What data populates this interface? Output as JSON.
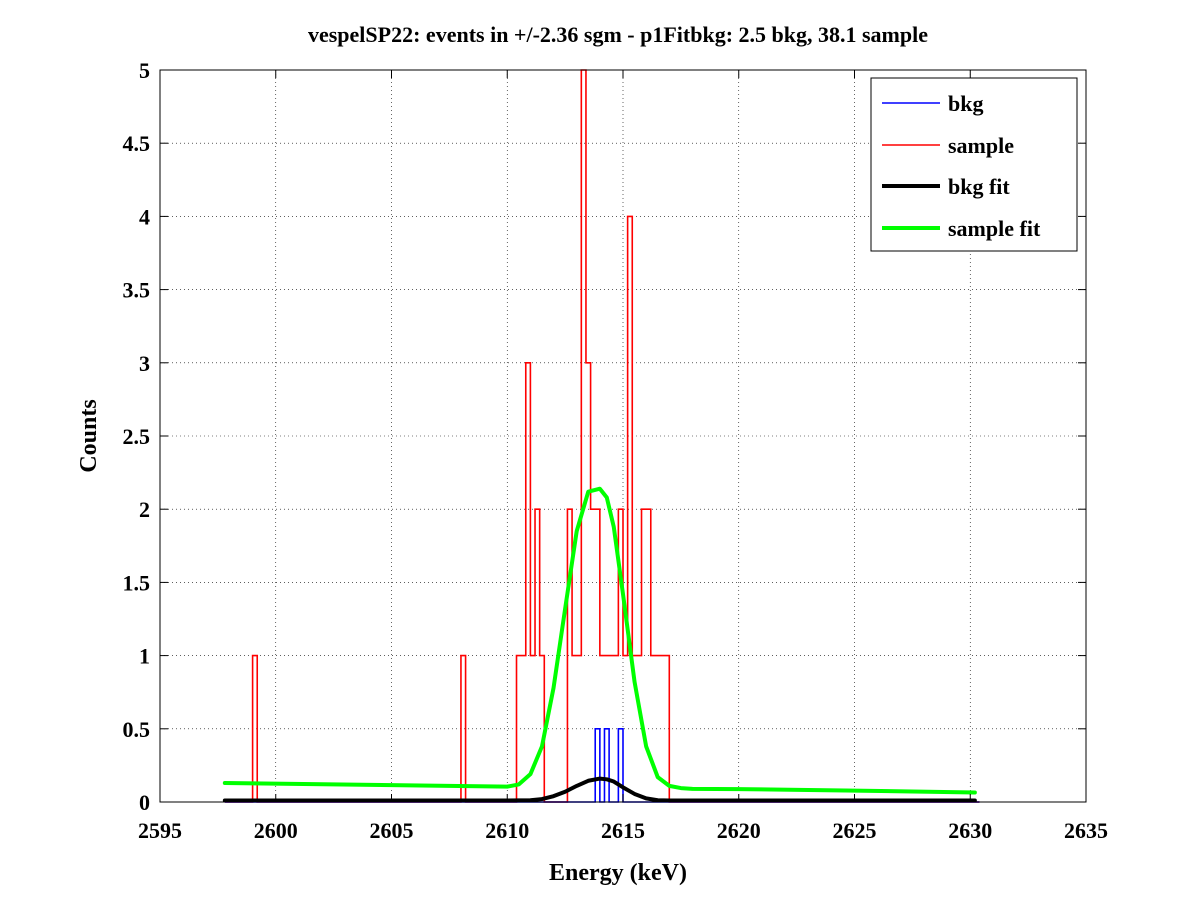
{
  "chart_data": {
    "type": "line",
    "title": "vespelSP22: events in +/-2.36 sgm - p1Fitbkg: 2.5 bkg, 38.1 sample",
    "xlabel": "Energy (keV)",
    "ylabel": "Counts",
    "xlim": [
      2595,
      2635
    ],
    "ylim": [
      0,
      5
    ],
    "x_ticks": [
      2595,
      2600,
      2605,
      2610,
      2615,
      2620,
      2625,
      2630,
      2635
    ],
    "y_ticks": [
      0,
      0.5,
      1,
      1.5,
      2,
      2.5,
      3,
      3.5,
      4,
      4.5,
      5
    ],
    "x_tick_labels": [
      "2595",
      "2600",
      "2605",
      "2610",
      "2615",
      "2620",
      "2625",
      "2630",
      "2635"
    ],
    "y_tick_labels": [
      "0",
      "0.5",
      "1",
      "1.5",
      "2",
      "2.5",
      "3",
      "3.5",
      "4",
      "4.5",
      "5"
    ],
    "grid": true,
    "legend_position": "top-right",
    "series": [
      {
        "name": "bkg",
        "kind": "step-histogram",
        "color": "#0000ff",
        "bin_width": 0.2,
        "x": [
          2597.8,
          2613.8,
          2614.0,
          2614.2,
          2614.4,
          2614.6,
          2614.8,
          2615.0,
          2615.2,
          2630.2
        ],
        "y": [
          0,
          0.5,
          0,
          0.5,
          0,
          0,
          0.5,
          0,
          0,
          0
        ]
      },
      {
        "name": "sample",
        "kind": "step-histogram",
        "color": "#ff0000",
        "bin_width": 0.2,
        "x": [
          2597.8,
          2599.0,
          2599.2,
          2608.0,
          2608.2,
          2610.4,
          2610.6,
          2610.8,
          2611.0,
          2611.2,
          2611.4,
          2611.6,
          2611.8,
          2612.6,
          2612.8,
          2613.0,
          2613.2,
          2613.4,
          2613.6,
          2613.8,
          2614.0,
          2614.2,
          2614.4,
          2614.6,
          2614.8,
          2615.0,
          2615.2,
          2615.4,
          2615.6,
          2615.8,
          2616.0,
          2616.2,
          2616.4,
          2616.6,
          2616.8,
          2617.0,
          2630.2
        ],
        "y": [
          0,
          1,
          0,
          1,
          0,
          1,
          1,
          3,
          1,
          2,
          1,
          0,
          0,
          2,
          1,
          1,
          5,
          3,
          2,
          2,
          1,
          1,
          1,
          1,
          2,
          1,
          4,
          1,
          1,
          2,
          2,
          1,
          1,
          1,
          1,
          0,
          0
        ]
      },
      {
        "name": "bkg fit",
        "kind": "line",
        "color": "#000000",
        "x": [
          2597.8,
          2610.0,
          2611.0,
          2611.5,
          2612.0,
          2612.5,
          2613.0,
          2613.5,
          2614.0,
          2614.3,
          2614.6,
          2615.0,
          2615.5,
          2616.0,
          2616.5,
          2617.0,
          2618.0,
          2630.2
        ],
        "y": [
          0.01,
          0.01,
          0.012,
          0.02,
          0.04,
          0.07,
          0.11,
          0.145,
          0.16,
          0.155,
          0.14,
          0.1,
          0.055,
          0.025,
          0.012,
          0.01,
          0.01,
          0.01
        ]
      },
      {
        "name": "sample fit",
        "kind": "line",
        "color": "#00ff00",
        "x": [
          2597.8,
          2605.0,
          2610.0,
          2610.5,
          2611.0,
          2611.5,
          2612.0,
          2612.5,
          2613.0,
          2613.5,
          2614.0,
          2614.3,
          2614.6,
          2615.0,
          2615.5,
          2616.0,
          2616.5,
          2617.0,
          2617.5,
          2618.0,
          2620.0,
          2625.0,
          2630.2
        ],
        "y": [
          0.13,
          0.115,
          0.105,
          0.12,
          0.19,
          0.38,
          0.78,
          1.32,
          1.85,
          2.12,
          2.14,
          2.08,
          1.88,
          1.42,
          0.82,
          0.38,
          0.17,
          0.11,
          0.095,
          0.09,
          0.088,
          0.078,
          0.065
        ]
      }
    ]
  }
}
